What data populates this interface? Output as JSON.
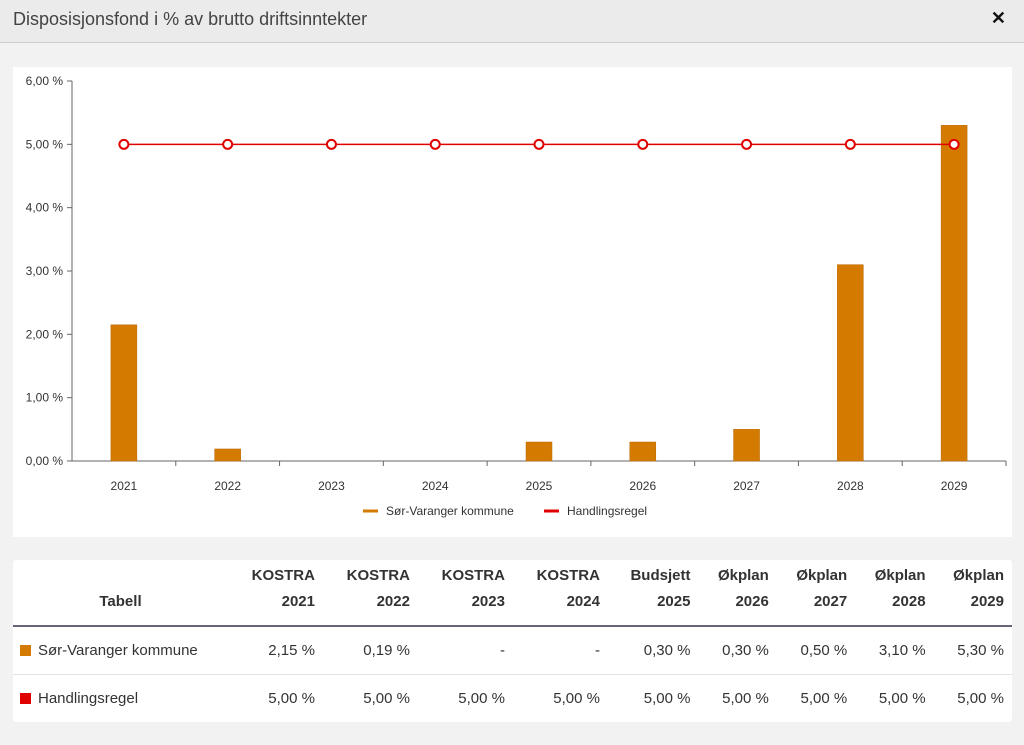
{
  "dialog": {
    "title": "Disposisjonsfond i % av brutto driftsinntekter",
    "close_label": "✕"
  },
  "chart_data": {
    "type": "bar",
    "title": "Disposisjonsfond i % av brutto driftsinntekter",
    "categories": [
      "2021",
      "2022",
      "2023",
      "2024",
      "2025",
      "2026",
      "2027",
      "2028",
      "2029"
    ],
    "ylim": [
      0,
      6
    ],
    "yticks": [
      "0,00 %",
      "1,00 %",
      "2,00 %",
      "3,00 %",
      "4,00 %",
      "5,00 %",
      "6,00 %"
    ],
    "series": [
      {
        "name": "Sør-Varanger kommune",
        "type": "bar",
        "color": "#d47a00",
        "values": [
          2.15,
          0.19,
          0,
          0,
          0.3,
          0.3,
          0.5,
          3.1,
          5.3
        ]
      },
      {
        "name": "Handlingsregel",
        "type": "line",
        "color": "#e00000",
        "values": [
          5,
          5,
          5,
          5,
          5,
          5,
          5,
          5,
          5
        ]
      }
    ],
    "legend": "bottom-center"
  },
  "table": {
    "corner": "Tabell",
    "headers": [
      [
        "KOSTRA",
        "2021"
      ],
      [
        "KOSTRA",
        "2022"
      ],
      [
        "KOSTRA",
        "2023"
      ],
      [
        "KOSTRA",
        "2024"
      ],
      [
        "Budsjett",
        "2025"
      ],
      [
        "Økplan",
        "2026"
      ],
      [
        "Økplan",
        "2027"
      ],
      [
        "Økplan",
        "2028"
      ],
      [
        "Økplan",
        "2029"
      ]
    ],
    "rows": [
      {
        "label": "Sør-Varanger kommune",
        "color": "#d47a00",
        "cells": [
          "2,15 %",
          "0,19 %",
          "-",
          "-",
          "0,30 %",
          "0,30 %",
          "0,50 %",
          "3,10 %",
          "5,30 %"
        ]
      },
      {
        "label": "Handlingsregel",
        "color": "#e00000",
        "cells": [
          "5,00 %",
          "5,00 %",
          "5,00 %",
          "5,00 %",
          "5,00 %",
          "5,00 %",
          "5,00 %",
          "5,00 %",
          "5,00 %"
        ]
      }
    ]
  }
}
